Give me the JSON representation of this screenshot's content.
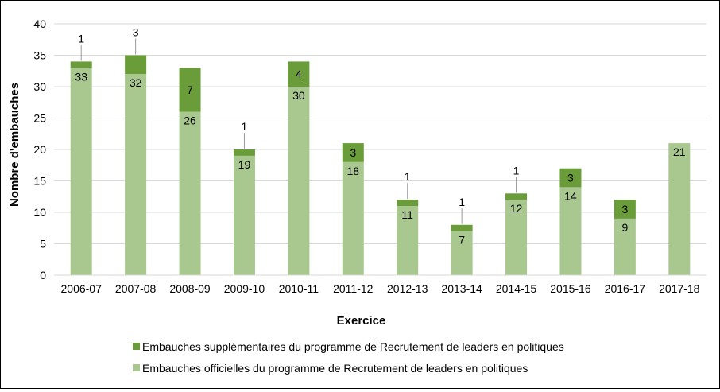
{
  "chart_data": {
    "type": "bar",
    "stacked": true,
    "title": "",
    "xlabel": "Exercice",
    "ylabel": "Nombre d'embauches",
    "ylim": [
      0,
      40
    ],
    "yticks": [
      "0",
      "5",
      "10",
      "15",
      "20",
      "25",
      "30",
      "35",
      "40"
    ],
    "grid": true,
    "legend_position": "bottom",
    "categories": [
      "2006-07",
      "2007-08",
      "2008-09",
      "2009-10",
      "2010-11",
      "2011-12",
      "2012-13",
      "2013-14",
      "2014-15",
      "2015-16",
      "2016-17",
      "2017-18"
    ],
    "series": [
      {
        "name": "Embauches officielles du programme de Recrutement de leaders en politiques",
        "color": "#a9c88f",
        "values": [
          33,
          32,
          26,
          19,
          30,
          18,
          11,
          7,
          12,
          14,
          9,
          21
        ]
      },
      {
        "name": "Embauches supplémentaires du programme de Recrutement de leaders en politiques",
        "color": "#6a9d3a",
        "values": [
          1,
          3,
          7,
          1,
          4,
          3,
          1,
          1,
          1,
          3,
          3,
          null
        ]
      }
    ]
  }
}
